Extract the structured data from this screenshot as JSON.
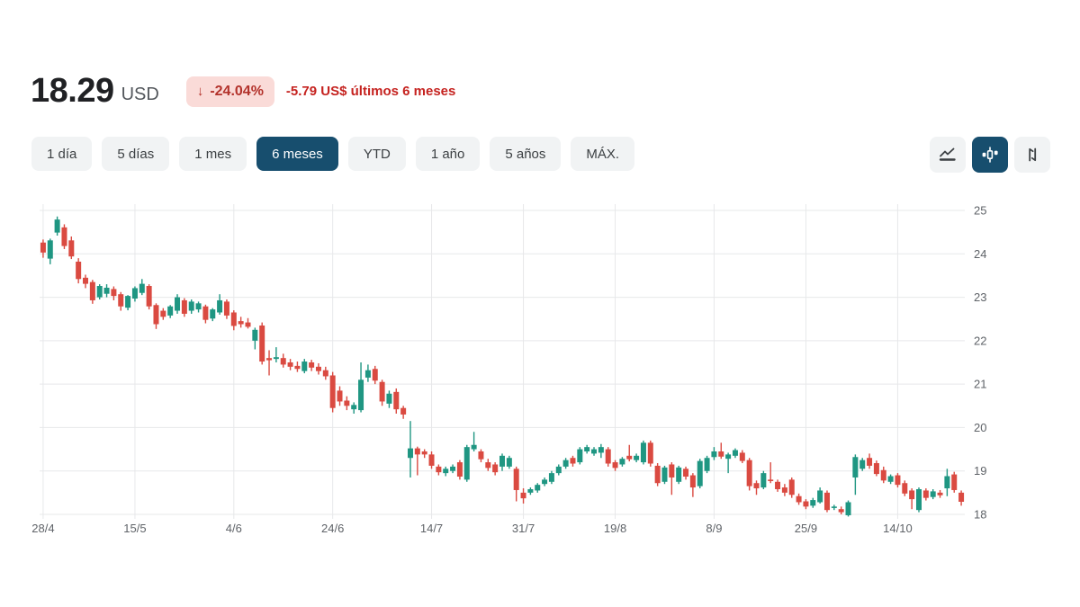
{
  "header": {
    "price": "18.29",
    "currency": "USD",
    "change_arrow": "↓",
    "change_percent": "-24.04%",
    "change_summary": "-5.79 US$ últimos 6 meses"
  },
  "ranges": [
    {
      "label": "1 día",
      "slug": "1-dia",
      "active": false
    },
    {
      "label": "5 días",
      "slug": "5-dias",
      "active": false
    },
    {
      "label": "1 mes",
      "slug": "1-mes",
      "active": false
    },
    {
      "label": "6 meses",
      "slug": "6-meses",
      "active": true
    },
    {
      "label": "YTD",
      "slug": "ytd",
      "active": false
    },
    {
      "label": "1 año",
      "slug": "1-ano",
      "active": false
    },
    {
      "label": "5 años",
      "slug": "5-anos",
      "active": false
    },
    {
      "label": "MÁX.",
      "slug": "max",
      "active": false
    }
  ],
  "chart_toolbar": {
    "buttons": [
      {
        "icon": "line-chart",
        "active": false
      },
      {
        "icon": "candlestick",
        "active": true
      },
      {
        "icon": "half-arrows-up-down",
        "active": false
      }
    ]
  },
  "colors": {
    "accent": "#174e6e",
    "up": "#1f9682",
    "down": "#da4a41",
    "badge_bg": "#fadbd8",
    "badge_text": "#b3322b",
    "change_text": "#c5221f",
    "chip_bg": "#f1f3f4",
    "chip_text": "#3c4043",
    "grid": "#e7e8ea",
    "axis_label": "#5f6368",
    "price_text": "#202124",
    "icon_stroke": "#3c4043"
  },
  "chart_data": {
    "type": "candlestick",
    "title": "",
    "currency": "USD",
    "grid": true,
    "ylim": [
      18,
      25
    ],
    "y_ticks": [
      25,
      24,
      23,
      22,
      21,
      20,
      19,
      18
    ],
    "x_tick_labels": [
      "28/4",
      "15/5",
      "4/6",
      "24/6",
      "14/7",
      "31/7",
      "19/8",
      "8/9",
      "25/9",
      "14/10"
    ],
    "x_tick_indices": [
      0,
      13,
      27,
      41,
      55,
      68,
      81,
      95,
      108,
      121
    ],
    "ohlc_order": [
      "open",
      "high",
      "low",
      "close"
    ],
    "candles": [
      [
        24.26,
        24.33,
        23.91,
        24.03
      ],
      [
        23.89,
        24.35,
        23.76,
        24.31
      ],
      [
        24.49,
        24.86,
        24.42,
        24.79
      ],
      [
        24.61,
        24.68,
        24.11,
        24.18
      ],
      [
        24.31,
        24.4,
        23.88,
        23.94
      ],
      [
        23.82,
        23.9,
        23.32,
        23.42
      ],
      [
        23.45,
        23.52,
        23.21,
        23.31
      ],
      [
        23.35,
        23.4,
        22.85,
        22.93
      ],
      [
        23.0,
        23.3,
        22.95,
        23.26
      ],
      [
        23.08,
        23.3,
        23.0,
        23.22
      ],
      [
        23.19,
        23.25,
        22.93,
        23.03
      ],
      [
        23.07,
        23.12,
        22.69,
        22.79
      ],
      [
        22.76,
        23.05,
        22.7,
        23.03
      ],
      [
        22.97,
        23.25,
        22.9,
        23.21
      ],
      [
        23.1,
        23.42,
        23.05,
        23.31
      ],
      [
        23.26,
        23.3,
        22.72,
        22.79
      ],
      [
        22.82,
        22.86,
        22.27,
        22.38
      ],
      [
        22.69,
        22.75,
        22.48,
        22.55
      ],
      [
        22.58,
        22.82,
        22.52,
        22.79
      ],
      [
        22.69,
        23.07,
        22.62,
        23.0
      ],
      [
        22.93,
        22.98,
        22.55,
        22.62
      ],
      [
        22.69,
        22.95,
        22.62,
        22.9
      ],
      [
        22.72,
        22.9,
        22.65,
        22.86
      ],
      [
        22.79,
        22.83,
        22.4,
        22.48
      ],
      [
        22.51,
        22.75,
        22.45,
        22.72
      ],
      [
        22.65,
        23.07,
        22.6,
        22.93
      ],
      [
        22.9,
        22.95,
        22.5,
        22.58
      ],
      [
        22.65,
        22.7,
        22.24,
        22.34
      ],
      [
        22.45,
        22.55,
        22.3,
        22.38
      ],
      [
        22.42,
        22.52,
        22.28,
        22.32
      ],
      [
        22.0,
        22.3,
        21.8,
        22.25
      ],
      [
        22.35,
        22.42,
        21.45,
        21.52
      ],
      [
        21.6,
        21.78,
        21.2,
        21.55
      ],
      [
        21.58,
        21.85,
        21.5,
        21.62
      ],
      [
        21.6,
        21.7,
        21.38,
        21.45
      ],
      [
        21.5,
        21.58,
        21.32,
        21.4
      ],
      [
        21.42,
        21.52,
        21.28,
        21.35
      ],
      [
        21.3,
        21.58,
        21.25,
        21.52
      ],
      [
        21.5,
        21.56,
        21.3,
        21.38
      ],
      [
        21.4,
        21.48,
        21.22,
        21.3
      ],
      [
        21.32,
        21.4,
        21.1,
        21.18
      ],
      [
        21.2,
        21.28,
        20.35,
        20.45
      ],
      [
        20.85,
        20.95,
        20.5,
        20.6
      ],
      [
        20.62,
        20.72,
        20.4,
        20.5
      ],
      [
        20.42,
        20.58,
        20.32,
        20.52
      ],
      [
        20.4,
        21.5,
        20.35,
        21.1
      ],
      [
        21.15,
        21.45,
        21.05,
        21.32
      ],
      [
        21.35,
        21.42,
        21.0,
        21.08
      ],
      [
        21.05,
        21.1,
        20.5,
        20.6
      ],
      [
        20.55,
        20.85,
        20.45,
        20.78
      ],
      [
        20.82,
        20.9,
        20.32,
        20.42
      ],
      [
        20.45,
        20.5,
        20.2,
        20.3
      ],
      [
        19.3,
        20.15,
        18.85,
        19.52
      ],
      [
        19.52,
        19.56,
        18.9,
        19.38
      ],
      [
        19.45,
        19.5,
        19.3,
        19.38
      ],
      [
        19.38,
        19.45,
        19.05,
        19.12
      ],
      [
        19.1,
        19.15,
        18.9,
        18.97
      ],
      [
        18.95,
        19.1,
        18.88,
        19.05
      ],
      [
        19.0,
        19.15,
        18.95,
        19.1
      ],
      [
        19.2,
        19.25,
        18.8,
        18.87
      ],
      [
        18.8,
        19.6,
        18.75,
        19.55
      ],
      [
        19.5,
        19.9,
        19.45,
        19.6
      ],
      [
        19.45,
        19.5,
        19.2,
        19.27
      ],
      [
        19.2,
        19.28,
        19.0,
        19.07
      ],
      [
        19.15,
        19.2,
        18.9,
        18.97
      ],
      [
        19.1,
        19.4,
        19.0,
        19.35
      ],
      [
        19.1,
        19.35,
        19.05,
        19.3
      ],
      [
        19.05,
        19.1,
        18.3,
        18.56
      ],
      [
        18.5,
        18.6,
        18.25,
        18.37
      ],
      [
        18.5,
        18.62,
        18.45,
        18.58
      ],
      [
        18.55,
        18.72,
        18.5,
        18.68
      ],
      [
        18.7,
        18.85,
        18.65,
        18.8
      ],
      [
        18.75,
        19.0,
        18.7,
        18.95
      ],
      [
        18.95,
        19.15,
        18.9,
        19.1
      ],
      [
        19.1,
        19.3,
        19.05,
        19.25
      ],
      [
        19.3,
        19.35,
        19.1,
        19.17
      ],
      [
        19.2,
        19.55,
        19.15,
        19.5
      ],
      [
        19.45,
        19.6,
        19.4,
        19.55
      ],
      [
        19.4,
        19.55,
        19.35,
        19.5
      ],
      [
        19.42,
        19.62,
        19.3,
        19.55
      ],
      [
        19.5,
        19.55,
        19.1,
        19.17
      ],
      [
        19.2,
        19.25,
        19.0,
        19.07
      ],
      [
        19.15,
        19.32,
        19.1,
        19.28
      ],
      [
        19.35,
        19.6,
        19.22,
        19.27
      ],
      [
        19.25,
        19.4,
        19.2,
        19.35
      ],
      [
        19.2,
        19.7,
        19.15,
        19.65
      ],
      [
        19.65,
        19.7,
        19.1,
        19.17
      ],
      [
        19.12,
        19.18,
        18.65,
        18.72
      ],
      [
        18.75,
        19.12,
        18.7,
        19.08
      ],
      [
        19.15,
        19.2,
        18.45,
        18.85
      ],
      [
        18.75,
        19.12,
        18.7,
        19.08
      ],
      [
        19.05,
        19.1,
        18.8,
        18.87
      ],
      [
        18.9,
        18.95,
        18.4,
        18.62
      ],
      [
        18.65,
        19.28,
        18.6,
        19.23
      ],
      [
        19.0,
        19.35,
        18.95,
        19.3
      ],
      [
        19.32,
        19.55,
        19.25,
        19.45
      ],
      [
        19.45,
        19.65,
        19.28,
        19.33
      ],
      [
        19.28,
        19.42,
        18.95,
        19.38
      ],
      [
        19.35,
        19.52,
        19.3,
        19.48
      ],
      [
        19.42,
        19.48,
        19.18,
        19.23
      ],
      [
        19.25,
        19.3,
        18.55,
        18.65
      ],
      [
        18.72,
        18.78,
        18.45,
        18.6
      ],
      [
        18.62,
        19.0,
        18.58,
        18.95
      ],
      [
        18.8,
        19.2,
        18.72,
        18.78
      ],
      [
        18.75,
        18.8,
        18.52,
        18.58
      ],
      [
        18.62,
        18.7,
        18.42,
        18.5
      ],
      [
        18.8,
        18.85,
        18.38,
        18.45
      ],
      [
        18.42,
        18.48,
        18.22,
        18.28
      ],
      [
        18.3,
        18.35,
        18.12,
        18.18
      ],
      [
        18.2,
        18.38,
        18.15,
        18.33
      ],
      [
        18.28,
        18.62,
        18.25,
        18.55
      ],
      [
        18.5,
        18.55,
        18.05,
        18.1
      ],
      [
        18.15,
        18.22,
        18.1,
        18.18
      ],
      [
        18.12,
        18.18,
        18.0,
        18.05
      ],
      [
        17.98,
        18.32,
        17.95,
        18.28
      ],
      [
        18.85,
        19.38,
        18.45,
        19.32
      ],
      [
        19.05,
        19.3,
        19.0,
        19.25
      ],
      [
        19.3,
        19.4,
        19.05,
        19.12
      ],
      [
        19.18,
        19.24,
        18.88,
        18.93
      ],
      [
        19.02,
        19.1,
        18.72,
        18.78
      ],
      [
        18.75,
        18.92,
        18.7,
        18.88
      ],
      [
        18.9,
        18.95,
        18.62,
        18.68
      ],
      [
        18.72,
        18.78,
        18.42,
        18.48
      ],
      [
        18.55,
        18.6,
        18.12,
        18.35
      ],
      [
        18.1,
        18.62,
        18.05,
        18.58
      ],
      [
        18.55,
        18.6,
        18.32,
        18.38
      ],
      [
        18.4,
        18.58,
        18.35,
        18.53
      ],
      [
        18.5,
        18.56,
        18.38,
        18.44
      ],
      [
        18.6,
        19.05,
        18.42,
        18.88
      ],
      [
        18.92,
        18.98,
        18.5,
        18.56
      ],
      [
        18.5,
        18.55,
        18.2,
        18.29
      ]
    ]
  }
}
